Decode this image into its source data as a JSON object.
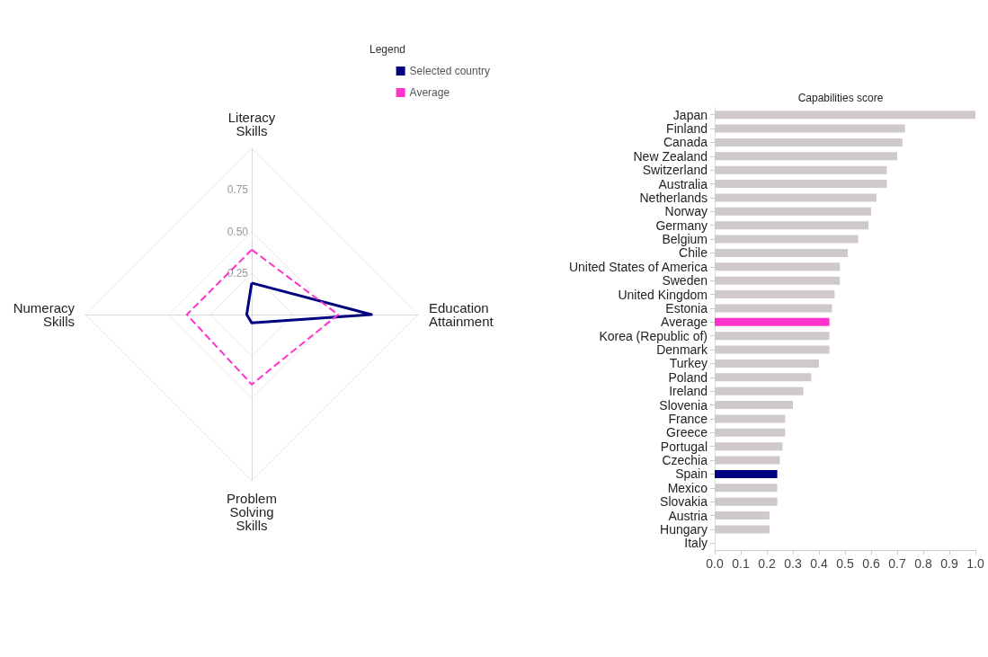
{
  "chart_data": [
    {
      "type": "radar",
      "categories": [
        "Literacy Skills",
        "Education Attainment",
        "Problem Solving Skills",
        "Numeracy Skills"
      ],
      "ylim": [
        0,
        1
      ],
      "yticks": [
        {
          "value": 0.25,
          "label": "0.25"
        },
        {
          "value": 0.5,
          "label": "0.50"
        },
        {
          "value": 0.75,
          "label": "0.75"
        }
      ],
      "legend": "top right",
      "legend_title": "Legend",
      "marker": "none",
      "series": [
        {
          "name": "Selected country",
          "color": "#000080",
          "line_style": "solid",
          "values": [
            0.19,
            0.72,
            0.05,
            0.03
          ]
        },
        {
          "name": "Average",
          "color": "#ff33cc",
          "line_style": "dashed",
          "values": [
            0.39,
            0.52,
            0.42,
            0.39
          ]
        }
      ]
    },
    {
      "type": "bar",
      "orientation": "horizontal",
      "title": "Capabilities score",
      "grid": false,
      "legend": false,
      "categories": [
        "Japan",
        "Finland",
        "Canada",
        "New Zealand",
        "Switzerland",
        "Australia",
        "Netherlands",
        "Norway",
        "Germany",
        "Belgium",
        "Chile",
        "United States of America",
        "Sweden",
        "United Kingdom",
        "Estonia",
        "Average",
        "Korea (Republic of)",
        "Denmark",
        "Turkey",
        "Poland",
        "Ireland",
        "Slovenia",
        "France",
        "Greece",
        "Portugal",
        "Czechia",
        "Spain",
        "Mexico",
        "Slovakia",
        "Austria",
        "Hungary",
        "Italy"
      ],
      "values": [
        1.0,
        0.73,
        0.72,
        0.7,
        0.66,
        0.66,
        0.62,
        0.6,
        0.59,
        0.55,
        0.51,
        0.48,
        0.48,
        0.46,
        0.45,
        0.44,
        0.44,
        0.44,
        0.4,
        0.37,
        0.34,
        0.3,
        0.27,
        0.27,
        0.26,
        0.25,
        0.24,
        0.24,
        0.24,
        0.21,
        0.21,
        0
      ],
      "colors": [
        "#cfc9c9",
        "#cfc9c9",
        "#cfc9c9",
        "#cfc9c9",
        "#cfc9c9",
        "#cfc9c9",
        "#cfc9c9",
        "#cfc9c9",
        "#cfc9c9",
        "#cfc9c9",
        "#cfc9c9",
        "#cfc9c9",
        "#cfc9c9",
        "#cfc9c9",
        "#cfc9c9",
        "#ff33cc",
        "#cfc9c9",
        "#cfc9c9",
        "#cfc9c9",
        "#cfc9c9",
        "#cfc9c9",
        "#cfc9c9",
        "#cfc9c9",
        "#cfc9c9",
        "#cfc9c9",
        "#cfc9c9",
        "#000080",
        "#cfc9c9",
        "#cfc9c9",
        "#cfc9c9",
        "#cfc9c9",
        "#cfc9c9"
      ],
      "xlim": [
        0,
        1
      ],
      "xticks": [
        {
          "value": 0,
          "label": "0.0"
        },
        {
          "value": 0.1,
          "label": "0.1"
        },
        {
          "value": 0.2,
          "label": "0.2"
        },
        {
          "value": 0.3,
          "label": "0.3"
        },
        {
          "value": 0.4,
          "label": "0.4"
        },
        {
          "value": 0.5,
          "label": "0.5"
        },
        {
          "value": 0.6,
          "label": "0.6"
        },
        {
          "value": 0.7,
          "label": "0.7"
        },
        {
          "value": 0.8,
          "label": "0.8"
        },
        {
          "value": 0.9,
          "label": "0.9"
        },
        {
          "value": 1,
          "label": "1.0"
        }
      ]
    }
  ]
}
